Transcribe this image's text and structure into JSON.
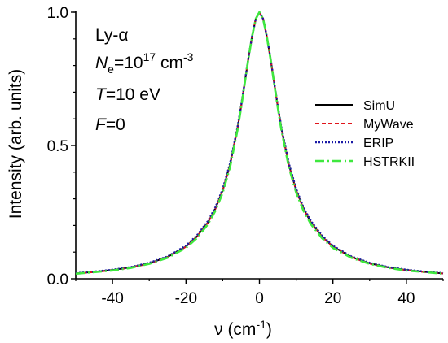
{
  "chart_data": {
    "type": "line",
    "xlabel": "ν (cm",
    "xlabel_sup": "-1",
    "xlabel_close": ")",
    "ylabel": "Intensity (arb. units)",
    "xlim": [
      -50,
      50
    ],
    "ylim": [
      0,
      1.0
    ],
    "xticks": [
      -40,
      -20,
      0,
      20,
      40
    ],
    "xtick_labels": [
      "-40",
      "-20",
      "0",
      "20",
      "40"
    ],
    "yticks": [
      0,
      0.5,
      1.0
    ],
    "ytick_labels": [
      "0.0",
      "0.5",
      "1.0"
    ],
    "grid": false,
    "legend_position": "right",
    "annotations": [
      {
        "parts": [
          {
            "t": "Ly-α"
          }
        ]
      },
      {
        "parts": [
          {
            "t": "N",
            "style": "italic"
          },
          {
            "t": "e",
            "style": "sub"
          },
          {
            "t": "=10"
          },
          {
            "t": "17",
            "style": "sup"
          },
          {
            "t": " cm"
          },
          {
            "t": "-3",
            "style": "sup"
          }
        ]
      },
      {
        "parts": [
          {
            "t": "T",
            "style": "italic"
          },
          {
            "t": "=10 eV"
          }
        ]
      },
      {
        "parts": [
          {
            "t": "F",
            "style": "italic"
          },
          {
            "t": "=0"
          }
        ]
      }
    ],
    "x": [
      -50,
      -45,
      -40,
      -35,
      -30,
      -25,
      -20,
      -17,
      -14,
      -12,
      -10,
      -8,
      -6,
      -5,
      -4,
      -3,
      -2,
      -1,
      0,
      1,
      2,
      3,
      4,
      5,
      6,
      8,
      10,
      12,
      14,
      17,
      20,
      25,
      30,
      35,
      40,
      45,
      50
    ],
    "series": [
      {
        "name": "SimU",
        "color": "#000000",
        "dash": "",
        "width": 2.0,
        "values": [
          0.02,
          0.026,
          0.033,
          0.043,
          0.058,
          0.082,
          0.121,
          0.159,
          0.212,
          0.263,
          0.332,
          0.428,
          0.562,
          0.645,
          0.735,
          0.827,
          0.91,
          0.975,
          1.0,
          0.975,
          0.91,
          0.827,
          0.735,
          0.645,
          0.562,
          0.428,
          0.332,
          0.263,
          0.212,
          0.159,
          0.121,
          0.082,
          0.058,
          0.043,
          0.033,
          0.026,
          0.02
        ]
      },
      {
        "name": "MyWave",
        "color": "#e0151b",
        "dash": "5,3",
        "width": 2.0,
        "values": [
          0.02,
          0.025,
          0.032,
          0.042,
          0.057,
          0.081,
          0.12,
          0.158,
          0.211,
          0.262,
          0.331,
          0.427,
          0.562,
          0.646,
          0.737,
          0.829,
          0.911,
          0.976,
          1.0,
          0.976,
          0.911,
          0.829,
          0.737,
          0.646,
          0.562,
          0.427,
          0.331,
          0.262,
          0.211,
          0.158,
          0.12,
          0.081,
          0.057,
          0.042,
          0.032,
          0.025,
          0.02
        ]
      },
      {
        "name": "ERIP",
        "color": "#1a1aa6",
        "dash": "2,2",
        "width": 2.4,
        "values": [
          0.021,
          0.027,
          0.034,
          0.044,
          0.06,
          0.084,
          0.124,
          0.163,
          0.217,
          0.268,
          0.337,
          0.433,
          0.566,
          0.648,
          0.738,
          0.829,
          0.91,
          0.975,
          1.0,
          0.975,
          0.91,
          0.829,
          0.738,
          0.648,
          0.566,
          0.433,
          0.337,
          0.268,
          0.217,
          0.163,
          0.124,
          0.084,
          0.06,
          0.044,
          0.034,
          0.027,
          0.021
        ]
      },
      {
        "name": "HSTRKII",
        "color": "#3ee83e",
        "dash": "11,4,2,4",
        "width": 2.6,
        "values": [
          0.019,
          0.025,
          0.031,
          0.041,
          0.056,
          0.079,
          0.116,
          0.153,
          0.205,
          0.255,
          0.323,
          0.419,
          0.556,
          0.641,
          0.733,
          0.826,
          0.909,
          0.975,
          1.0,
          0.975,
          0.909,
          0.826,
          0.733,
          0.641,
          0.556,
          0.419,
          0.323,
          0.255,
          0.205,
          0.153,
          0.116,
          0.079,
          0.056,
          0.041,
          0.031,
          0.025,
          0.019
        ]
      }
    ]
  }
}
